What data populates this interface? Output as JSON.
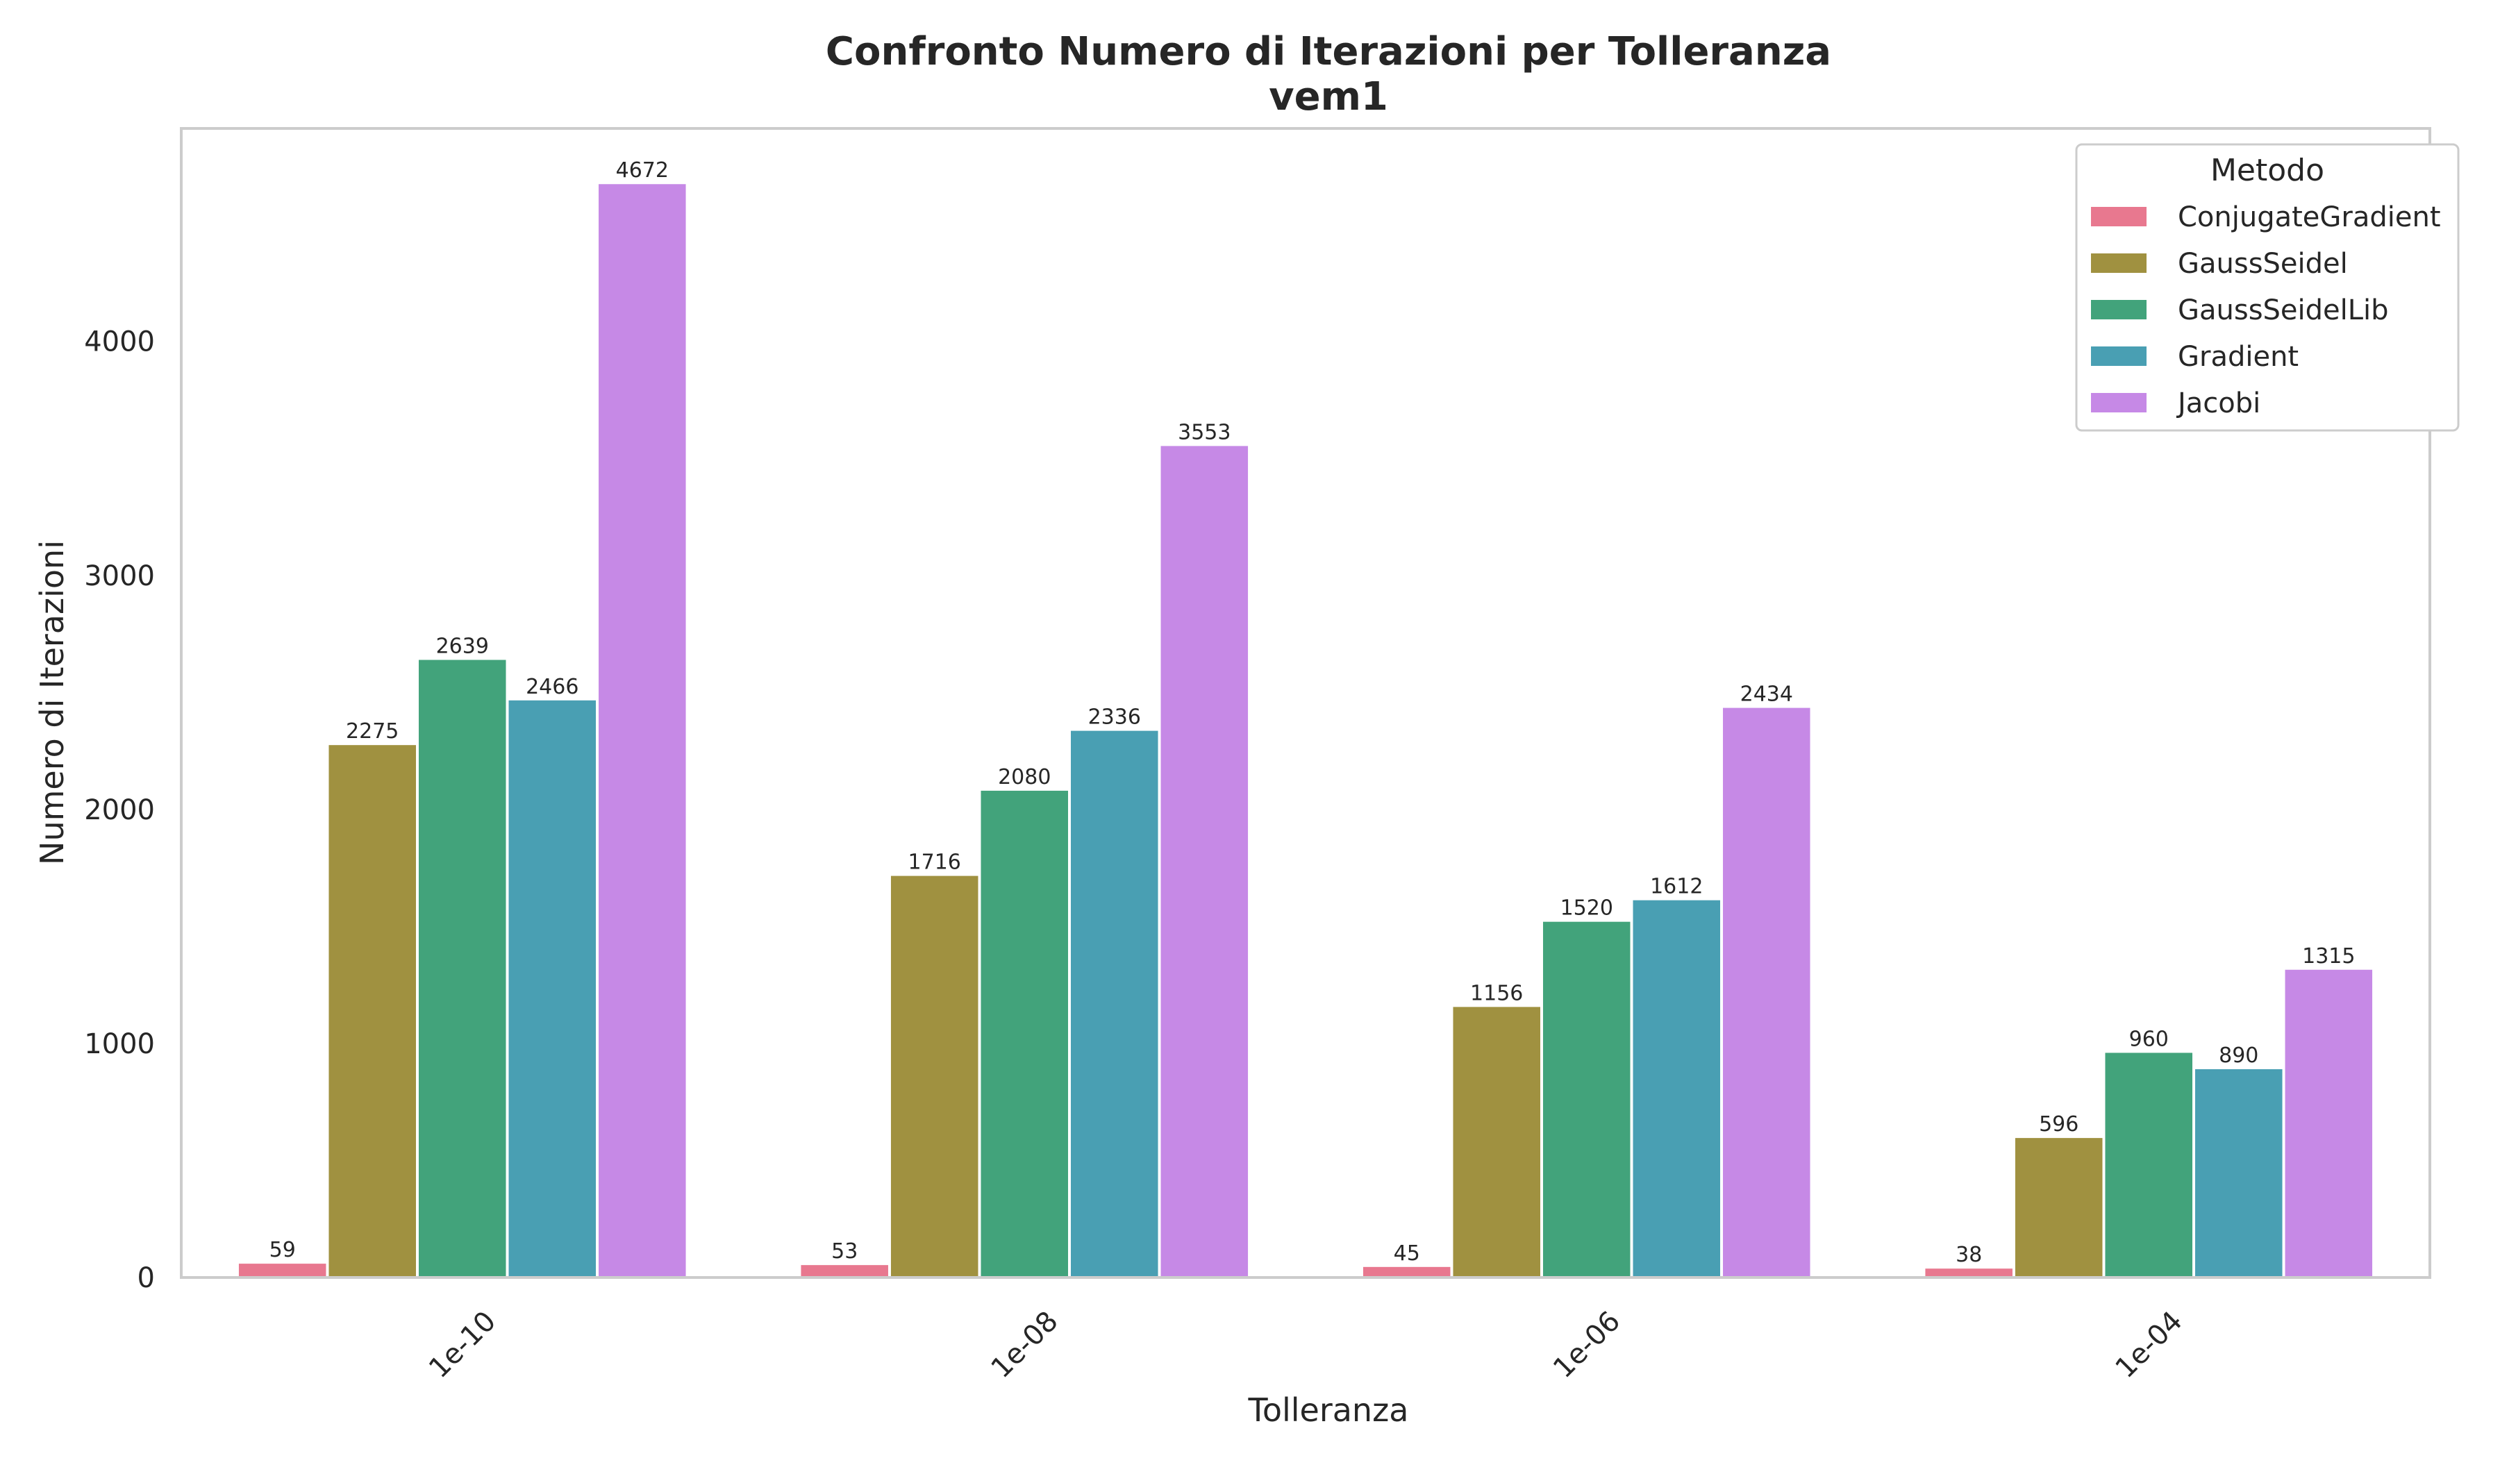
{
  "chart_data": {
    "type": "bar",
    "title": "Confronto Numero di Iterazioni per Tolleranza",
    "subtitle": "vem1",
    "xlabel": "Tolleranza",
    "ylabel": "Numero di Iterazioni",
    "categories": [
      "1e-10",
      "1e-08",
      "1e-06",
      "1e-04"
    ],
    "ylim": [
      0,
      4910
    ],
    "yticks": [
      0,
      1000,
      2000,
      3000,
      4000
    ],
    "grid": false,
    "legend": {
      "title": "Metodo",
      "placement": "top-right"
    },
    "series": [
      {
        "name": "ConjugateGradient",
        "color": "#e8788f",
        "values": [
          59,
          53,
          45,
          38
        ]
      },
      {
        "name": "GaussSeidel",
        "color": "#a09140",
        "values": [
          2275,
          1716,
          1156,
          596
        ]
      },
      {
        "name": "GaussSeidelLib",
        "color": "#42a37b",
        "values": [
          2639,
          2080,
          1520,
          960
        ]
      },
      {
        "name": "Gradient",
        "color": "#499fb3",
        "values": [
          2466,
          2336,
          1612,
          890
        ]
      },
      {
        "name": "Jacobi",
        "color": "#c689e6",
        "values": [
          4672,
          3553,
          2434,
          1315
        ]
      }
    ]
  }
}
